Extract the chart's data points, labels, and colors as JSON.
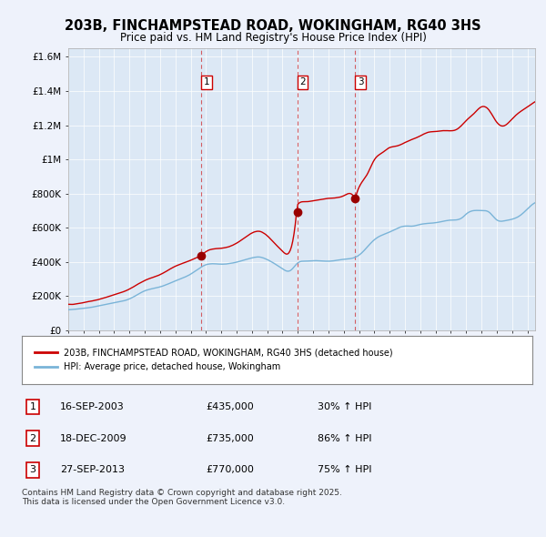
{
  "title": "203B, FINCHAMPSTEAD ROAD, WOKINGHAM, RG40 3HS",
  "subtitle": "Price paid vs. HM Land Registry's House Price Index (HPI)",
  "background_color": "#eef2fb",
  "plot_bg_color": "#dce8f5",
  "red_color": "#cc0000",
  "blue_color": "#7ab4d8",
  "grid_color": "#ffffff",
  "ylim": [
    0,
    1650000
  ],
  "yticks": [
    0,
    200000,
    400000,
    600000,
    800000,
    1000000,
    1200000,
    1400000,
    1600000
  ],
  "ytick_labels": [
    "£0",
    "£200K",
    "£400K",
    "£600K",
    "£800K",
    "£1M",
    "£1.2M",
    "£1.4M",
    "£1.6M"
  ],
  "xlim_start": 1995.0,
  "xlim_end": 2025.5,
  "transactions": [
    {
      "num": 1,
      "date": "16-SEP-2003",
      "price": 435000,
      "change": "30% ↑ HPI",
      "x": 2003.708
    },
    {
      "num": 2,
      "date": "18-DEC-2009",
      "price": 735000,
      "change": "86% ↑ HPI",
      "x": 2009.958
    },
    {
      "num": 3,
      "date": "27-SEP-2013",
      "price": 770000,
      "change": "75% ↑ HPI",
      "x": 2013.742
    }
  ],
  "legend_line1": "203B, FINCHAMPSTEAD ROAD, WOKINGHAM, RG40 3HS (detached house)",
  "legend_line2": "HPI: Average price, detached house, Wokingham",
  "footer": "Contains HM Land Registry data © Crown copyright and database right 2025.\nThis data is licensed under the Open Government Licence v3.0."
}
